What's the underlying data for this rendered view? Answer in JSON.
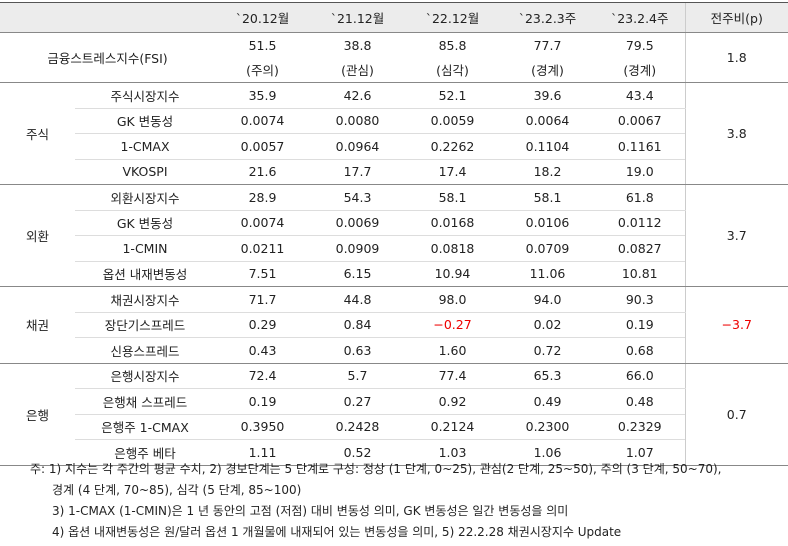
{
  "table": {
    "columns": [
      "`20.12월",
      "`21.12월",
      "`22.12월",
      "`23.2.3주",
      "`23.2.4주",
      "전주비(p)"
    ],
    "fsi": {
      "label": "금융스트레스지수(FSI)",
      "values": [
        "51.5",
        "38.8",
        "85.8",
        "77.7",
        "79.5"
      ],
      "levels": [
        "(주의)",
        "(관심)",
        "(심각)",
        "(경계)",
        "(경계)"
      ],
      "change": "1.8"
    },
    "groups": [
      {
        "name": "주식",
        "change": "3.8",
        "rows": [
          {
            "label": "주식시장지수",
            "values": [
              "35.9",
              "42.6",
              "52.1",
              "39.6",
              "43.4"
            ]
          },
          {
            "label": "GK 변동성",
            "values": [
              "0.0074",
              "0.0080",
              "0.0059",
              "0.0064",
              "0.0067"
            ]
          },
          {
            "label": "1-CMAX",
            "values": [
              "0.0057",
              "0.0964",
              "0.2262",
              "0.1104",
              "0.1161"
            ]
          },
          {
            "label": "VKOSPI",
            "values": [
              "21.6",
              "17.7",
              "17.4",
              "18.2",
              "19.0"
            ]
          }
        ]
      },
      {
        "name": "외환",
        "change": "3.7",
        "rows": [
          {
            "label": "외환시장지수",
            "values": [
              "28.9",
              "54.3",
              "58.1",
              "58.1",
              "61.8"
            ]
          },
          {
            "label": "GK 변동성",
            "values": [
              "0.0074",
              "0.0069",
              "0.0168",
              "0.0106",
              "0.0112"
            ]
          },
          {
            "label": "1-CMIN",
            "values": [
              "0.0211",
              "0.0909",
              "0.0818",
              "0.0709",
              "0.0827"
            ]
          },
          {
            "label": "옵션 내재변동성",
            "values": [
              "7.51",
              "6.15",
              "10.94",
              "11.06",
              "10.81"
            ]
          }
        ]
      },
      {
        "name": "채권",
        "change": "−3.7",
        "rows": [
          {
            "label": "채권시장지수",
            "values": [
              "71.7",
              "44.8",
              "98.0",
              "94.0",
              "90.3"
            ]
          },
          {
            "label": "장단기스프레드",
            "values": [
              "0.29",
              "0.84",
              "−0.27",
              "0.02",
              "0.19"
            ]
          },
          {
            "label": "신용스프레드",
            "values": [
              "0.43",
              "0.63",
              "1.60",
              "0.72",
              "0.68"
            ]
          }
        ]
      },
      {
        "name": "은행",
        "change": "0.7",
        "rows": [
          {
            "label": "은행시장지수",
            "values": [
              "72.4",
              "5.7",
              "77.4",
              "65.3",
              "66.0"
            ]
          },
          {
            "label": "은행채 스프레드",
            "values": [
              "0.19",
              "0.27",
              "0.92",
              "0.49",
              "0.48"
            ]
          },
          {
            "label": "은행주 1-CMAX",
            "values": [
              "0.3950",
              "0.2428",
              "0.2124",
              "0.2300",
              "0.2329"
            ]
          },
          {
            "label": "은행주 베타",
            "values": [
              "1.11",
              "0.52",
              "1.03",
              "1.06",
              "1.07"
            ]
          }
        ]
      }
    ]
  },
  "notes": [
    "주: 1) 지수는 각 주간의 평균 수치, 2) 경보단계는 5 단계로 구성: 정상 (1 단계, 0~25), 관심(2 단계, 25~50), 주의 (3 단계, 50~70),",
    "경계 (4 단계, 70~85), 심각 (5 단계, 85~100)",
    "3) 1-CMAX (1-CMIN)은 1 년 동안의 고점 (저점) 대비 변동성 의미, GK 변동성은 일간 변동성을 의미",
    "4) 옵션 내재변동성은 원/달러 옵션 1 개월물에 내재되어 있는 변동성을 의미, 5) 22.2.28 채권시장지수 Update"
  ]
}
